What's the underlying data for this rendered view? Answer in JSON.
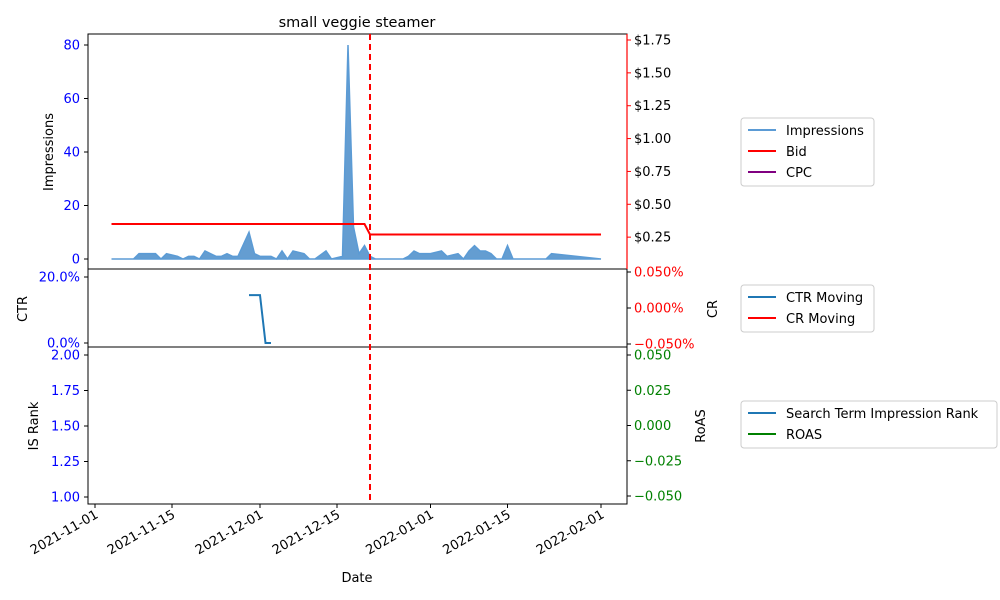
{
  "chart_data": {
    "type": "line",
    "title": "small veggie steamer",
    "xlabel": "Date",
    "x_ticks": [
      "2021-11-01",
      "2021-11-15",
      "2021-12-01",
      "2021-12-15",
      "2022-01-01",
      "2022-01-15",
      "2022-02-01"
    ],
    "marker_date": "2021-12-21",
    "marker_color": "#ff0000",
    "panels": [
      {
        "id": "top",
        "left_label": "Impressions",
        "left_ticks": [
          "0",
          "20",
          "40",
          "60",
          "80"
        ],
        "left_tick_color": "#0000ff",
        "right_ticks": [
          "$0.25",
          "$0.50",
          "$0.75",
          "$1.00",
          "$1.25",
          "$1.50",
          "$1.75"
        ],
        "right_tick_color": "#000000",
        "right_axis_color": "#ff0000",
        "ylim_left": [
          -3,
          84
        ],
        "ylim_right": [
          0,
          1.77
        ],
        "legend": [
          "Impressions",
          "Bid",
          "CPC"
        ],
        "legend_colors": [
          "#5b9bd5",
          "#ff0000",
          "#800080"
        ],
        "series": [
          {
            "name": "Impressions",
            "kind": "area",
            "color": "#3d85c6",
            "points": [
              [
                "2021-11-04",
                0
              ],
              [
                "2021-11-08",
                0
              ],
              [
                "2021-11-09",
                2
              ],
              [
                "2021-11-12",
                2
              ],
              [
                "2021-11-13",
                0
              ],
              [
                "2021-11-14",
                2
              ],
              [
                "2021-11-16",
                1
              ],
              [
                "2021-11-17",
                0
              ],
              [
                "2021-11-18",
                1
              ],
              [
                "2021-11-19",
                1
              ],
              [
                "2021-11-20",
                0
              ],
              [
                "2021-11-21",
                3
              ],
              [
                "2021-11-22",
                2
              ],
              [
                "2021-11-23",
                1
              ],
              [
                "2021-11-24",
                1
              ],
              [
                "2021-11-25",
                2
              ],
              [
                "2021-11-26",
                1
              ],
              [
                "2021-11-27",
                1
              ],
              [
                "2021-11-29",
                10
              ],
              [
                "2021-11-30",
                2
              ],
              [
                "2021-12-01",
                1
              ],
              [
                "2021-12-03",
                1
              ],
              [
                "2021-12-04",
                0
              ],
              [
                "2021-12-05",
                3
              ],
              [
                "2021-12-06",
                0
              ],
              [
                "2021-12-07",
                3
              ],
              [
                "2021-12-09",
                2
              ],
              [
                "2021-12-10",
                0
              ],
              [
                "2021-12-11",
                0
              ],
              [
                "2021-12-13",
                3
              ],
              [
                "2021-12-14",
                0
              ],
              [
                "2021-12-16",
                1
              ],
              [
                "2021-12-17",
                80
              ],
              [
                "2021-12-18",
                12
              ],
              [
                "2021-12-19",
                2
              ],
              [
                "2021-12-20",
                5
              ],
              [
                "2021-12-21",
                1
              ],
              [
                "2021-12-22",
                0
              ],
              [
                "2021-12-27",
                0
              ],
              [
                "2021-12-28",
                1
              ],
              [
                "2021-12-29",
                3
              ],
              [
                "2021-12-30",
                2
              ],
              [
                "2022-01-01",
                2
              ],
              [
                "2022-01-03",
                3
              ],
              [
                "2022-01-04",
                1
              ],
              [
                "2022-01-06",
                2
              ],
              [
                "2022-01-07",
                0
              ],
              [
                "2022-01-08",
                3
              ],
              [
                "2022-01-09",
                5
              ],
              [
                "2022-01-10",
                3
              ],
              [
                "2022-01-11",
                3
              ],
              [
                "2022-01-12",
                2
              ],
              [
                "2022-01-13",
                0
              ],
              [
                "2022-01-14",
                0
              ],
              [
                "2022-01-15",
                5
              ],
              [
                "2022-01-16",
                0
              ],
              [
                "2022-01-22",
                0
              ],
              [
                "2022-01-23",
                2
              ],
              [
                "2022-02-01",
                0
              ]
            ]
          },
          {
            "name": "Bid",
            "kind": "line",
            "axis": "right",
            "color": "#ff0000",
            "points": [
              [
                "2021-11-04",
                0.35
              ],
              [
                "2021-12-20",
                0.35
              ],
              [
                "2021-12-21",
                0.27
              ],
              [
                "2022-02-01",
                0.27
              ]
            ]
          }
        ]
      },
      {
        "id": "middle",
        "left_label": "CTR",
        "left_ticks": [
          "0.0%",
          "20.0%"
        ],
        "left_tick_color": "#0000ff",
        "right_label": "CR",
        "right_ticks": [
          "0.050%",
          "0.000%",
          "−0.050%"
        ],
        "right_tick_color": "#ff0000",
        "ylim_left": [
          -0.005,
          0.21
        ],
        "legend": [
          "CTR Moving",
          "CR Moving"
        ],
        "legend_colors": [
          "#1f77b4",
          "#ff0000"
        ],
        "series": [
          {
            "name": "CTR Moving",
            "kind": "line",
            "color": "#1f77b4",
            "points": [
              [
                "2021-11-29",
                0.143
              ],
              [
                "2021-12-01",
                0.143
              ],
              [
                "2021-12-02",
                0.0
              ],
              [
                "2021-12-03",
                0.0
              ]
            ]
          }
        ]
      },
      {
        "id": "bottom",
        "left_label": "IS Rank",
        "left_ticks": [
          "1.00",
          "1.25",
          "1.50",
          "1.75",
          "2.00"
        ],
        "left_tick_color": "#0000ff",
        "right_label": "RoAS",
        "right_ticks": [
          "0.050",
          "0.025",
          "0.000",
          "−0.025",
          "−0.050"
        ],
        "right_tick_color": "#008000",
        "legend": [
          "Search Term Impression Rank",
          "ROAS"
        ],
        "legend_colors": [
          "#1f77b4",
          "#008000"
        ],
        "series": []
      }
    ]
  }
}
